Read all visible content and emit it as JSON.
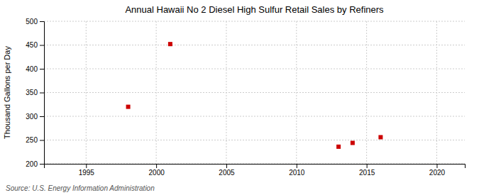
{
  "chart_data": {
    "type": "scatter",
    "title": "Annual Hawaii No 2 Diesel High Sulfur Retail Sales by Refiners",
    "ylabel": "Thousand Gallons per Day",
    "source": "Source: U.S. Energy Information Administration",
    "x": [
      1998,
      2001,
      2013,
      2014,
      2016
    ],
    "values": [
      320,
      452,
      236,
      244,
      256
    ],
    "color": "#cc0000",
    "marker": "square",
    "xlim": [
      1992,
      2022
    ],
    "ylim": [
      200,
      500
    ],
    "xticks": [
      1995,
      2000,
      2005,
      2010,
      2015,
      2020
    ],
    "yticks": [
      200,
      250,
      300,
      350,
      400,
      450,
      500
    ],
    "grid": true
  }
}
